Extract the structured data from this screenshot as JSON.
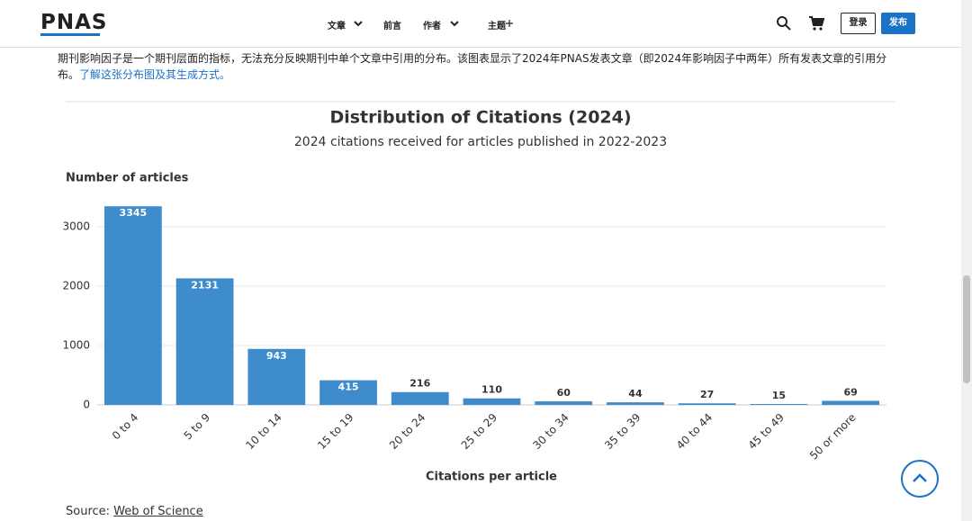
{
  "header": {
    "logo": "PNAS",
    "nav": [
      "文章",
      "前言",
      "作者",
      "主题"
    ],
    "login": "登录",
    "publish": "发布"
  },
  "intro": {
    "text": "期刊影响因子是一个期刊层面的指标，无法充分反映期刊中单个文章中引用的分布。该图表显示了2024年PNAS发表文章（即2024年影响因子中两年）所有发表文章的引用分布。",
    "link": "了解这张分布图及其生成方式。"
  },
  "chart_data": {
    "type": "bar",
    "title": "Distribution of Citations (2024)",
    "subtitle": "2024 citations received for articles published in 2022-2023",
    "y_label": "Number of articles",
    "x_label": "Citations per article",
    "categories": [
      "0 to 4",
      "5 to 9",
      "10 to 14",
      "15 to 19",
      "20 to 24",
      "25 to 29",
      "30 to 34",
      "35 to 39",
      "40 to 44",
      "45 to 49",
      "50 or more"
    ],
    "values": [
      3345,
      2131,
      943,
      415,
      216,
      110,
      60,
      44,
      27,
      15,
      69
    ],
    "color": "#3f8ccc",
    "ylim": [
      0,
      3400
    ],
    "yticks": [
      0,
      1000,
      2000,
      3000
    ],
    "grid": true,
    "source_label": "Source:",
    "source": "Web of Science"
  }
}
